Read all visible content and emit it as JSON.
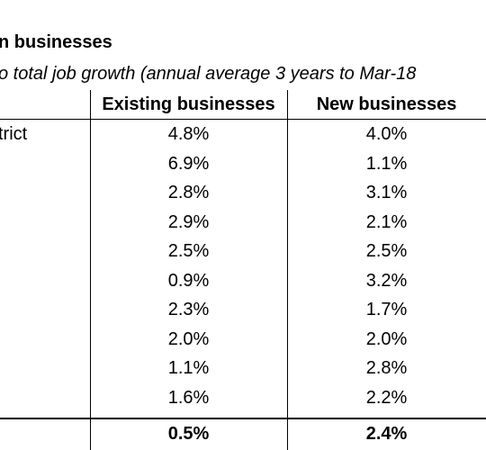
{
  "title": "n businesses",
  "subtitle": "o total job growth (annual average 3 years to Mar-18",
  "table": {
    "headers": [
      "",
      "Existing businesses",
      "New businesses"
    ],
    "rows": [
      {
        "label": "strict",
        "existing": "4.8%",
        "new": "4.0%"
      },
      {
        "label": "",
        "existing": "6.9%",
        "new": "1.1%"
      },
      {
        "label": "",
        "existing": "2.8%",
        "new": "3.1%"
      },
      {
        "label": "",
        "existing": "2.9%",
        "new": "2.1%"
      },
      {
        "label": "",
        "existing": "2.5%",
        "new": "2.5%"
      },
      {
        "label": "",
        "existing": "0.9%",
        "new": "3.2%"
      },
      {
        "label": "",
        "existing": "2.3%",
        "new": "1.7%"
      },
      {
        "label": "",
        "existing": "2.0%",
        "new": "2.0%"
      },
      {
        "label": "",
        "existing": "1.1%",
        "new": "2.8%"
      },
      {
        "label": "",
        "existing": "1.6%",
        "new": "2.2%"
      }
    ],
    "total": {
      "label": "",
      "existing": "0.5%",
      "new": "2.4%"
    }
  }
}
